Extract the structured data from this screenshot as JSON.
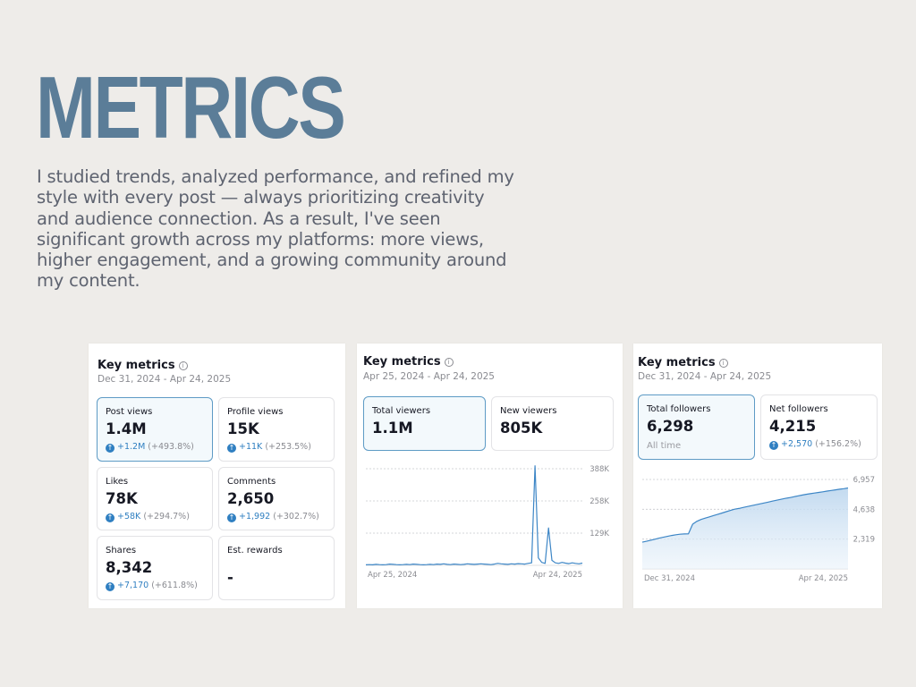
{
  "header": {
    "title": "METRICS",
    "intro": "I studied trends, analyzed performance, and refined my style with every post — always prioritizing creativity and audience connection. As a result, I've seen significant growth across my platforms: more views, higher engagement, and a growing community around my content."
  },
  "accent_color": "#5b7d98",
  "panel1": {
    "title": "Key metrics",
    "date": "Dec 31, 2024 - Apr 24, 2025",
    "cards": [
      {
        "label": "Post views",
        "value": "1.4M",
        "change": "+1.2M",
        "pct": "(+493.8%)",
        "active": true
      },
      {
        "label": "Profile views",
        "value": "15K",
        "change": "+11K",
        "pct": "(+253.5%)"
      },
      {
        "label": "Likes",
        "value": "78K",
        "change": "+58K",
        "pct": "(+294.7%)"
      },
      {
        "label": "Comments",
        "value": "2,650",
        "change": "+1,992",
        "pct": "(+302.7%)"
      },
      {
        "label": "Shares",
        "value": "8,342",
        "change": "+7,170",
        "pct": "(+611.8%)"
      },
      {
        "label": "Est. rewards",
        "value": "-"
      }
    ]
  },
  "panel2": {
    "title": "Key metrics",
    "date": "Apr 25, 2024 - Apr 24, 2025",
    "cards": [
      {
        "label": "Total viewers",
        "value": "1.1M",
        "active": true
      },
      {
        "label": "New viewers",
        "value": "805K"
      }
    ],
    "chart_data": {
      "type": "line",
      "series": [
        {
          "values": [
            2,
            3,
            2,
            4,
            3,
            2,
            3,
            5,
            4,
            3,
            2,
            3,
            4,
            3,
            5,
            4,
            3,
            2,
            3,
            4,
            3,
            5,
            4,
            6,
            4,
            3,
            5,
            4,
            3,
            4,
            6,
            5,
            4,
            5,
            6,
            5,
            4,
            3,
            5,
            8,
            6,
            5,
            4,
            6,
            5,
            7,
            6,
            5,
            8,
            10,
            400,
            30,
            12,
            8,
            150,
            20,
            10,
            8,
            12,
            9,
            7,
            10,
            8,
            6,
            9
          ]
        }
      ],
      "x_labels": [
        "Apr 25, 2024",
        "Apr 24, 2025"
      ],
      "y_ticks": [
        "129K",
        "258K",
        "388K"
      ],
      "ylim": [
        0,
        388
      ]
    }
  },
  "panel3": {
    "title": "Key metrics",
    "date": "Dec 31, 2024 - Apr 24, 2025",
    "cards": [
      {
        "label": "Total followers",
        "value": "6,298",
        "sub": "All time",
        "active": true
      },
      {
        "label": "Net followers",
        "value": "4,215",
        "change": "+2,570",
        "pct": "(+156.2%)"
      }
    ],
    "chart_data": {
      "type": "area",
      "series": [
        {
          "values": [
            2083,
            2150,
            2230,
            2310,
            2390,
            2460,
            2530,
            2600,
            2660,
            2700,
            2720,
            2730,
            3480,
            3700,
            3850,
            3950,
            4050,
            4150,
            4250,
            4350,
            4450,
            4550,
            4650,
            4700,
            4780,
            4850,
            4920,
            4990,
            5060,
            5130,
            5200,
            5270,
            5340,
            5410,
            5480,
            5540,
            5610,
            5680,
            5740,
            5800,
            5850,
            5900,
            5950,
            6000,
            6050,
            6100,
            6150,
            6200,
            6240,
            6298
          ]
        }
      ],
      "x_labels": [
        "Dec 31, 2024",
        "Apr 24, 2025"
      ],
      "y_ticks": [
        "2,319",
        "4,638",
        "6,957"
      ],
      "ylim": [
        0,
        6957
      ]
    }
  }
}
